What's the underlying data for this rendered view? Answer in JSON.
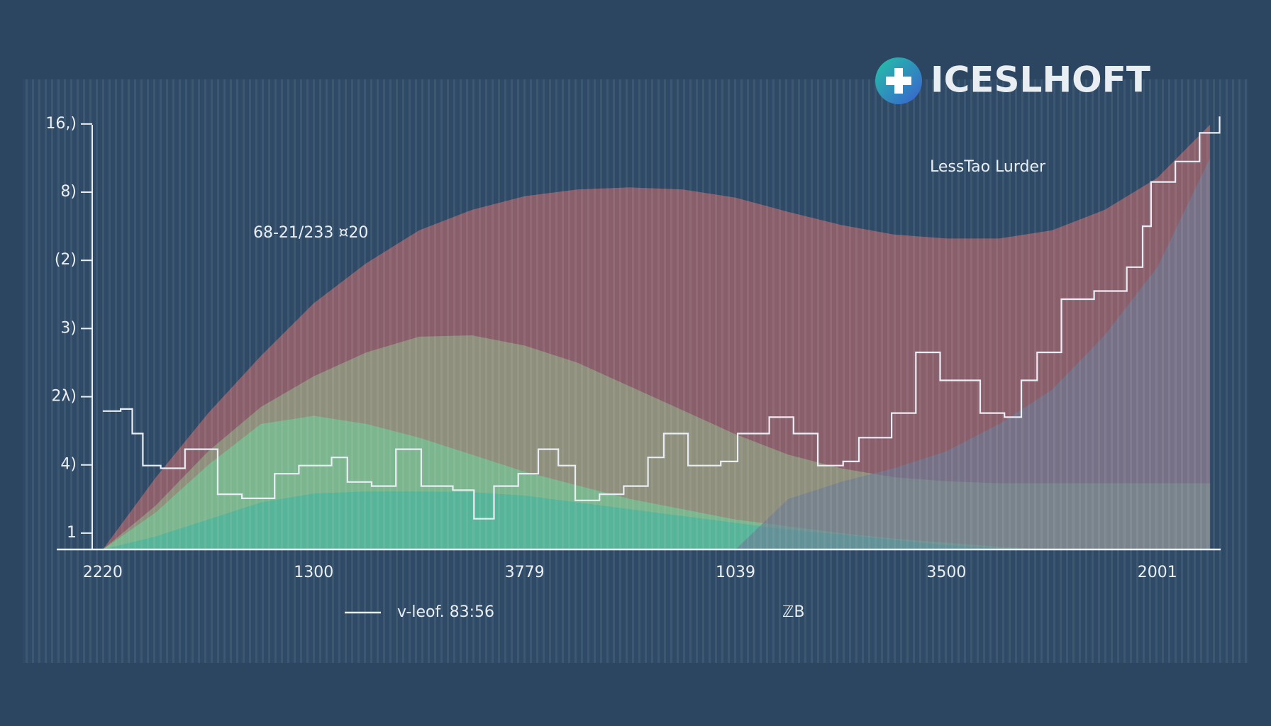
{
  "chart_data": {
    "type": "area",
    "logo": "ICESLHOFT",
    "annotations": [
      "68-21/233 ¤20",
      "LessTao Lurder",
      "ℤB"
    ],
    "x": [
      0,
      5,
      10,
      15,
      20,
      25,
      30,
      35,
      40,
      45,
      50,
      55,
      60,
      65,
      70,
      75,
      80,
      85,
      90,
      95,
      100,
      105
    ],
    "series": [
      {
        "type": "area",
        "color": "#c46c70",
        "values": [
          0.76,
          1.81,
          2.76,
          3.6,
          4.37,
          4.96,
          5.44,
          5.74,
          5.94,
          6.04,
          6.07,
          6.04,
          5.92,
          5.71,
          5.52,
          5.38,
          5.32,
          5.32,
          5.44,
          5.74,
          6.21,
          6.99
        ]
      },
      {
        "type": "area",
        "color": "#93ad88",
        "values": [
          0.76,
          1.4,
          2.2,
          2.85,
          3.3,
          3.65,
          3.88,
          3.9,
          3.75,
          3.5,
          3.15,
          2.8,
          2.45,
          2.15,
          1.95,
          1.82,
          1.76,
          1.73,
          1.73,
          1.73,
          1.73,
          1.73
        ]
      },
      {
        "type": "area",
        "color": "#6fcf9a",
        "values": [
          0.76,
          1.3,
          2.0,
          2.6,
          2.72,
          2.6,
          2.4,
          2.15,
          1.9,
          1.7,
          1.5,
          1.35,
          1.2,
          1.1,
          1.0,
          0.92,
          0.86,
          0.8,
          0.76,
          0.76,
          0.76,
          0.76
        ]
      },
      {
        "type": "area",
        "color": "#3fb3a0",
        "values": [
          0.76,
          0.95,
          1.2,
          1.45,
          1.58,
          1.61,
          1.61,
          1.6,
          1.55,
          1.45,
          1.35,
          1.25,
          1.15,
          1.05,
          0.98,
          0.9,
          0.82,
          0.78,
          0.76,
          0.76,
          0.76,
          0.76
        ]
      },
      {
        "type": "area",
        "color": "#6a7d96",
        "values": [
          0.76,
          0.76,
          0.76,
          0.76,
          0.76,
          0.76,
          0.76,
          0.76,
          0.76,
          0.76,
          0.76,
          0.76,
          0.76,
          1.5,
          1.75,
          1.95,
          2.2,
          2.6,
          3.1,
          3.9,
          4.9,
          6.5
        ]
      },
      {
        "type": "line",
        "name": "v-leof. 83:56",
        "color": "#e8eef4",
        "x": [
          0,
          1.7,
          2.8,
          3.8,
          5.5,
          7.8,
          10.9,
          13.2,
          16.3,
          18.6,
          21.7,
          23.2,
          25.5,
          27.8,
          30.2,
          33.2,
          35.2,
          37.1,
          39.4,
          41.3,
          43.2,
          44.8,
          47.1,
          49.4,
          51.7,
          53.2,
          55.5,
          58.6,
          60.2,
          63.2,
          65.5,
          67.8,
          70.2,
          71.7,
          74.8,
          77.1,
          79.4,
          81.7,
          83.2,
          85.5,
          87.1,
          88.6,
          90.9,
          94.0,
          97.1,
          98.6,
          99.4,
          101.7,
          104.0,
          105.9
        ],
        "values": [
          2.79,
          2.82,
          2.46,
          1.99,
          1.95,
          2.23,
          1.57,
          1.51,
          1.87,
          1.99,
          2.11,
          1.75,
          1.69,
          2.23,
          1.69,
          1.63,
          1.21,
          1.69,
          1.87,
          2.23,
          1.99,
          1.48,
          1.57,
          1.69,
          2.11,
          2.46,
          1.99,
          2.05,
          2.46,
          2.7,
          2.46,
          1.99,
          2.05,
          2.4,
          2.76,
          3.65,
          3.24,
          3.24,
          2.76,
          2.7,
          3.24,
          3.65,
          4.43,
          4.55,
          4.9,
          5.5,
          6.15,
          6.45,
          6.87,
          7.11
        ]
      }
    ],
    "xlim": [
      -1,
      106
    ],
    "xticks": [
      {
        "value": 0,
        "label": "2220"
      },
      {
        "value": 20,
        "label": "1300"
      },
      {
        "value": 40,
        "label": "3779"
      },
      {
        "value": 60,
        "label": "1039"
      },
      {
        "value": 80,
        "label": "3500"
      },
      {
        "value": 100,
        "label": "2001"
      }
    ],
    "ylim": [
      0.76,
      7.3
    ],
    "yticks": [
      1,
      {
        "value": 2,
        "label": "4)"
      },
      {
        "value": 3,
        "label": "2λ)"
      },
      {
        "value": 4,
        "label": "3)"
      },
      {
        "value": 5,
        "label": "(2)"
      },
      {
        "value": 6,
        "label": "8)"
      },
      {
        "value": 7,
        "label": "16,)"
      }
    ]
  }
}
